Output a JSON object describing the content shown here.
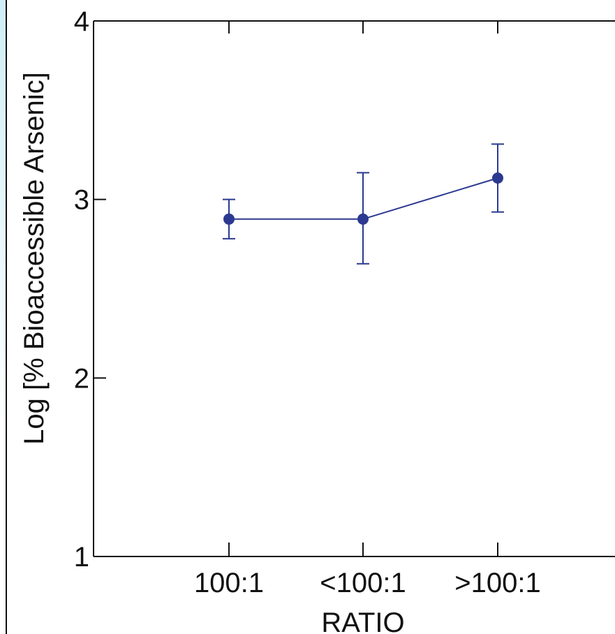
{
  "chart_data": {
    "type": "line",
    "categories": [
      "100:1",
      "<100:1",
      ">100:1"
    ],
    "series": [
      {
        "values": [
          2.89,
          2.89,
          3.12
        ],
        "error_low": [
          2.78,
          2.64,
          2.93
        ],
        "error_high": [
          3.0,
          3.15,
          3.31
        ]
      }
    ],
    "xlabel": "RATIO",
    "ylabel": "Log [% Bioaccessible Arsenic]",
    "ylim": [
      1,
      4
    ],
    "yticks": [
      "1",
      "2",
      "3",
      "4"
    ],
    "grid": false,
    "colors": {
      "series": "#2b3990",
      "axis": "#111111"
    }
  }
}
